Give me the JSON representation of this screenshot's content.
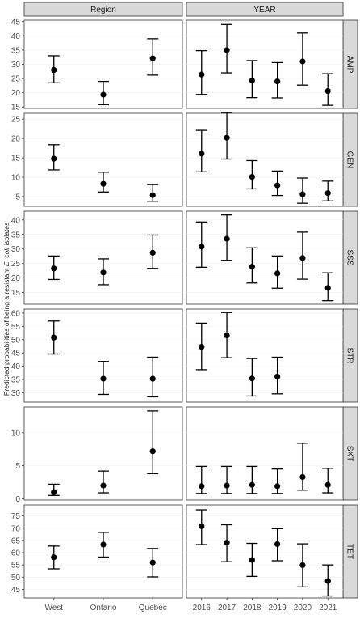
{
  "chart_data": {
    "type": "scatter",
    "ylabel": {
      "before": "Predicted probabilities of being a resistant ",
      "italic": "E. coli",
      "after": " isolates"
    },
    "columns": [
      {
        "strip": "Region",
        "categories": [
          "West",
          "Ontario",
          "Quebec"
        ]
      },
      {
        "strip": "YEAR",
        "categories": [
          "2016",
          "2017",
          "2018",
          "2019",
          "2020",
          "2021"
        ]
      }
    ],
    "rows": [
      {
        "strip": "AMP",
        "ylim": [
          14.5,
          45.5
        ],
        "ticks": [
          15,
          20,
          25,
          30,
          35,
          40,
          45
        ],
        "Region": [
          {
            "y": 28,
            "lo": 23.5,
            "hi": 33
          },
          {
            "y": 19.3,
            "lo": 15.8,
            "hi": 24
          },
          {
            "y": 32.1,
            "lo": 26.2,
            "hi": 39
          }
        ],
        "YEAR": [
          {
            "y": 26.4,
            "lo": 19.4,
            "hi": 34.8
          },
          {
            "y": 35,
            "lo": 27,
            "hi": 44
          },
          {
            "y": 24.3,
            "lo": 18.3,
            "hi": 31.3
          },
          {
            "y": 24,
            "lo": 18.2,
            "hi": 30.6
          },
          {
            "y": 31,
            "lo": 22.7,
            "hi": 41
          },
          {
            "y": 20.6,
            "lo": 15.6,
            "hi": 26.7
          }
        ]
      },
      {
        "strip": "GEN",
        "ylim": [
          2.5,
          26.5
        ],
        "ticks": [
          5,
          10,
          15,
          20,
          25
        ],
        "Region": [
          {
            "y": 14.8,
            "lo": 11.9,
            "hi": 18.4
          },
          {
            "y": 8.3,
            "lo": 6.2,
            "hi": 11.3
          },
          {
            "y": 5.4,
            "lo": 3.8,
            "hi": 8.1
          }
        ],
        "YEAR": [
          {
            "y": 16.1,
            "lo": 11.4,
            "hi": 22.1
          },
          {
            "y": 20.2,
            "lo": 14.7,
            "hi": 26.7
          },
          {
            "y": 10.1,
            "lo": 7,
            "hi": 14.3
          },
          {
            "y": 7.9,
            "lo": 5.3,
            "hi": 11.6
          },
          {
            "y": 5.6,
            "lo": 3.3,
            "hi": 9.8
          },
          {
            "y": 5.9,
            "lo": 3.9,
            "hi": 9
          }
        ]
      },
      {
        "strip": "SSS",
        "ylim": [
          11,
          43
        ],
        "ticks": [
          15,
          20,
          25,
          30,
          35,
          40
        ],
        "Region": [
          {
            "y": 23.3,
            "lo": 19.5,
            "hi": 27.6
          },
          {
            "y": 21.9,
            "lo": 17.7,
            "hi": 26.6
          },
          {
            "y": 28.7,
            "lo": 23.3,
            "hi": 34.8
          }
        ],
        "YEAR": [
          {
            "y": 30.8,
            "lo": 23.7,
            "hi": 39.3
          },
          {
            "y": 33.5,
            "lo": 26.1,
            "hi": 41.7
          },
          {
            "y": 23.9,
            "lo": 18.3,
            "hi": 30.4
          },
          {
            "y": 21.6,
            "lo": 16.5,
            "hi": 27.6
          },
          {
            "y": 26.9,
            "lo": 19.6,
            "hi": 35.8
          },
          {
            "y": 16.6,
            "lo": 12.2,
            "hi": 21.8
          }
        ]
      },
      {
        "strip": "STR",
        "ylim": [
          26.5,
          61.5
        ],
        "ticks": [
          30,
          35,
          40,
          45,
          50,
          55,
          60
        ],
        "Region": [
          {
            "y": 50.8,
            "lo": 44.6,
            "hi": 57
          },
          {
            "y": 35.3,
            "lo": 29.4,
            "hi": 41.8
          },
          {
            "y": 35.3,
            "lo": 28.5,
            "hi": 43.4
          }
        ],
        "YEAR": [
          {
            "y": 47.3,
            "lo": 38.7,
            "hi": 56.2
          },
          {
            "y": 51.6,
            "lo": 43.2,
            "hi": 60.2
          },
          {
            "y": 35.4,
            "lo": 28.8,
            "hi": 42.9
          },
          {
            "y": 36.1,
            "lo": 29.6,
            "hi": 43.4
          }
        ]
      },
      {
        "strip": "SXT",
        "ylim": [
          -0.2,
          13.9
        ],
        "ticks": [
          0,
          5,
          10
        ],
        "Region": [
          {
            "y": 1,
            "lo": 0.5,
            "hi": 2.2
          },
          {
            "y": 2,
            "lo": 0.9,
            "hi": 4.2
          },
          {
            "y": 7.2,
            "lo": 3.8,
            "hi": 13.3
          }
        ],
        "YEAR": [
          {
            "y": 1.9,
            "lo": 0.8,
            "hi": 4.9
          },
          {
            "y": 2,
            "lo": 0.8,
            "hi": 4.9
          },
          {
            "y": 2.1,
            "lo": 0.8,
            "hi": 4.9
          },
          {
            "y": 1.9,
            "lo": 0.8,
            "hi": 4.5
          },
          {
            "y": 3.3,
            "lo": 1.3,
            "hi": 8.4
          },
          {
            "y": 2.1,
            "lo": 0.9,
            "hi": 4.6
          }
        ]
      },
      {
        "strip": "TET",
        "ylim": [
          41.5,
          79.5
        ],
        "ticks": [
          45,
          50,
          55,
          60,
          65,
          70,
          75
        ],
        "Region": [
          {
            "y": 58.1,
            "lo": 53.4,
            "hi": 62.7
          },
          {
            "y": 63.3,
            "lo": 58.2,
            "hi": 68.3
          },
          {
            "y": 56,
            "lo": 50.1,
            "hi": 61.7
          }
        ],
        "YEAR": [
          {
            "y": 70.8,
            "lo": 63.3,
            "hi": 77.5
          },
          {
            "y": 64.1,
            "lo": 56.3,
            "hi": 71.4
          },
          {
            "y": 57,
            "lo": 50.3,
            "hi": 63.8
          },
          {
            "y": 63.5,
            "lo": 56.7,
            "hi": 69.8
          },
          {
            "y": 54.9,
            "lo": 46,
            "hi": 63.6
          },
          {
            "y": 48.4,
            "lo": 42.3,
            "hi": 55
          }
        ]
      }
    ]
  }
}
